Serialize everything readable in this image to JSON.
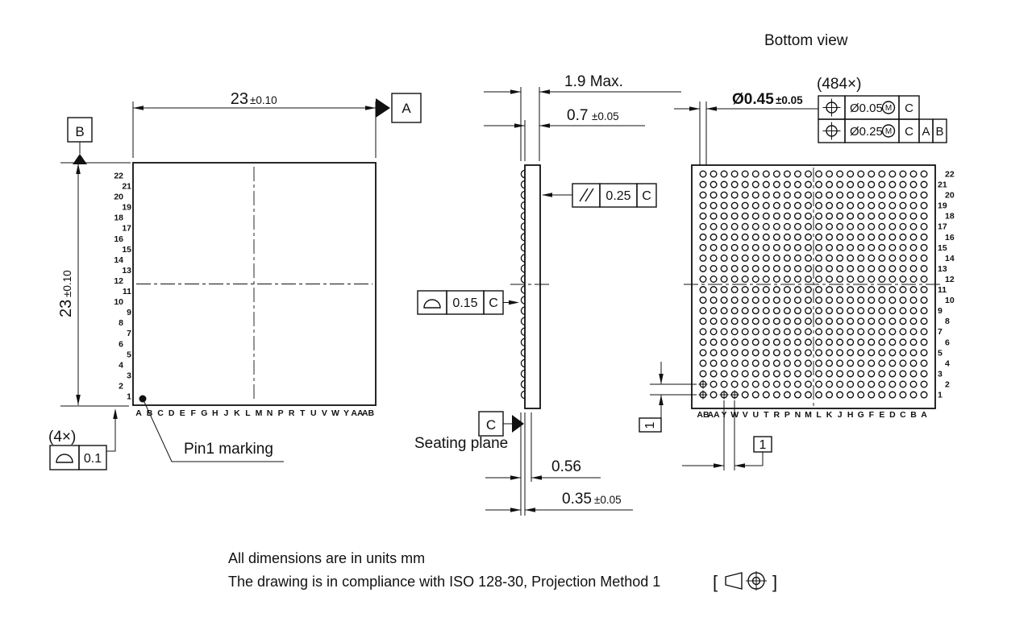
{
  "drawing": {
    "top_view": {
      "dim_width_value": "23",
      "dim_width_tol": "±0.10",
      "dim_height_value": "23",
      "dim_height_tol": "±0.10",
      "datum_a": "A",
      "datum_b": "B",
      "corner_count_note": "(4×)",
      "corner_fcf_value": "0.1",
      "pin1_label": "Pin1 marking",
      "column_letters": [
        "A",
        "B",
        "C",
        "D",
        "E",
        "F",
        "G",
        "H",
        "J",
        "K",
        "L",
        "M",
        "N",
        "P",
        "R",
        "T",
        "U",
        "V",
        "W",
        "Y",
        "AA",
        "AB"
      ],
      "row_numbers": [
        "1",
        "2",
        "3",
        "4",
        "5",
        "6",
        "7",
        "8",
        "9",
        "10",
        "11",
        "12",
        "13",
        "14",
        "15",
        "16",
        "17",
        "18",
        "19",
        "20",
        "21",
        "22"
      ]
    },
    "side_view": {
      "dim_total": "1.9 Max.",
      "dim_body_value": "0.7",
      "dim_body_tol": "±0.05",
      "parallelism_value": "0.25",
      "parallelism_datum": "C",
      "profile_value": "0.15",
      "profile_datum": "C",
      "datum_c": "C",
      "seating_plane_label": "Seating plane",
      "dim_ball_width": "0.56",
      "dim_ball_height_value": "0.35",
      "dim_ball_height_tol": "±0.05"
    },
    "bottom_view": {
      "title": "Bottom view",
      "count_note": "(484×)",
      "ball_dia_value": "Ø0.45",
      "ball_dia_tol": "±0.05",
      "fcf": [
        {
          "tolerance": "Ø0.05",
          "modifier": "M",
          "datums": [
            "C"
          ]
        },
        {
          "tolerance": "Ø0.25",
          "modifier": "M",
          "datums": [
            "C",
            "A",
            "B"
          ]
        }
      ],
      "pitch_x": "1",
      "pitch_y": "1",
      "grid_rows": 22,
      "grid_cols": 22,
      "column_letters": [
        "AB",
        "AA",
        "Y",
        "W",
        "V",
        "U",
        "T",
        "R",
        "P",
        "N",
        "M",
        "L",
        "K",
        "J",
        "H",
        "G",
        "F",
        "E",
        "D",
        "C",
        "B",
        "A"
      ],
      "row_numbers": [
        "1",
        "2",
        "3",
        "4",
        "5",
        "6",
        "7",
        "8",
        "9",
        "10",
        "11",
        "12",
        "13",
        "14",
        "15",
        "16",
        "17",
        "18",
        "19",
        "20",
        "21",
        "22"
      ],
      "crossed_balls": [
        {
          "col": "AB",
          "row": 2
        },
        {
          "col": "AB",
          "row": 1
        },
        {
          "col": "Y",
          "row": 1
        },
        {
          "col": "W",
          "row": 1
        }
      ]
    },
    "notes": {
      "units_line": "All dimensions are in units mm",
      "compliance_line": "The drawing is in compliance with ISO 128-30, Projection Method 1",
      "bracket_open": "[",
      "bracket_close": "]"
    }
  }
}
